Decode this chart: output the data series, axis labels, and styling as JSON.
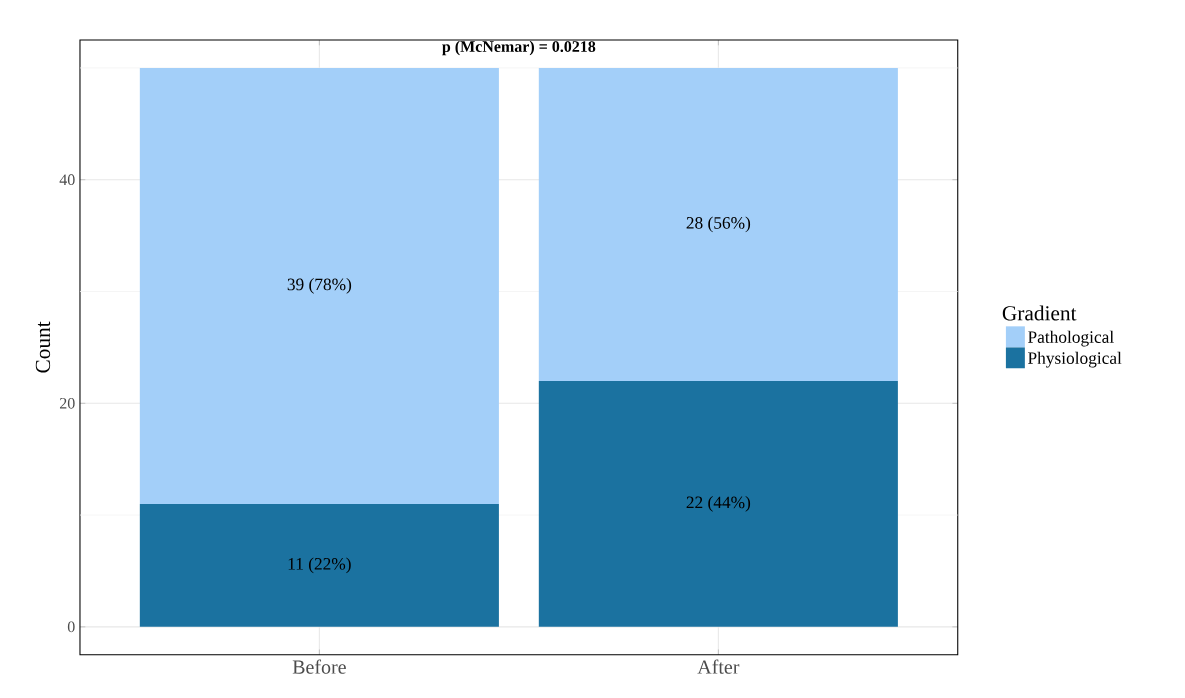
{
  "chart_data": {
    "type": "bar",
    "stacked": true,
    "title": "p (McNemar) = 0.0218",
    "ylabel": "Count",
    "legend_title": "Gradient",
    "categories": [
      "Before",
      "After"
    ],
    "series": [
      {
        "name": "Physiological",
        "color": "#1b72a0",
        "values": [
          11,
          22
        ],
        "value_labels": [
          "11 (22%)",
          "22 (44%)"
        ]
      },
      {
        "name": "Pathological",
        "color": "#a3cff9",
        "values": [
          39,
          28
        ],
        "value_labels": [
          "39 (78%)",
          "28 (56%)"
        ]
      }
    ],
    "ylim": [
      -2.5,
      52.5
    ],
    "yticks": [
      0,
      {
        "value": 10,
        "label": null
      },
      20,
      {
        "value": 30,
        "label": null
      },
      40,
      {
        "value": 50,
        "label": null
      }
    ],
    "grid": true,
    "legend": "right"
  }
}
